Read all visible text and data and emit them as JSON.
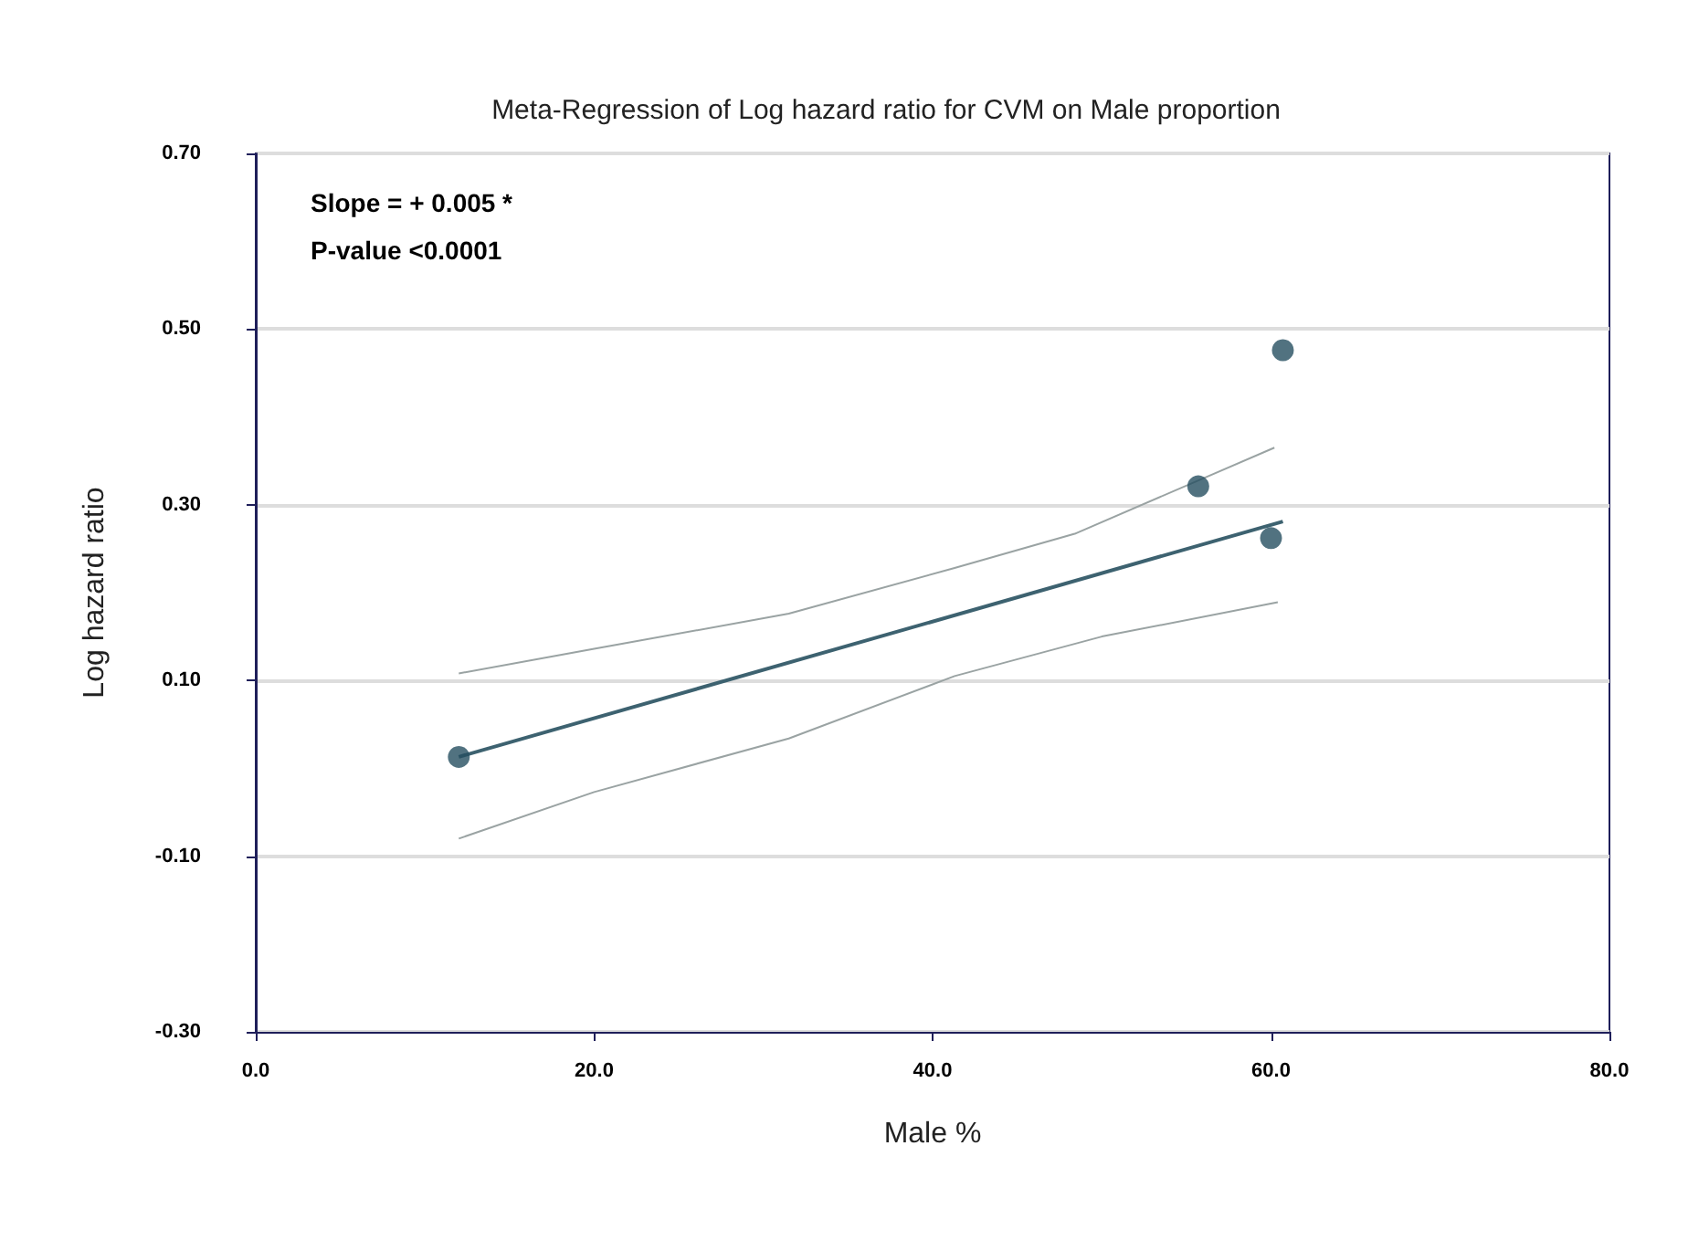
{
  "chart_data": {
    "type": "scatter",
    "title": "Meta-Regression of Log hazard ratio for CVM on Male proportion",
    "xlabel": "Male %",
    "ylabel": "Log hazard ratio",
    "annotations": [
      "Slope = + 0.005 *",
      "P-value <0.0001"
    ],
    "xlim": [
      0,
      80
    ],
    "xticks": [
      {
        "value": 0,
        "label": "0.0"
      },
      {
        "value": 20,
        "label": "20.0"
      },
      {
        "value": 40,
        "label": "40.0"
      },
      {
        "value": 60,
        "label": "60.0"
      },
      {
        "value": 80,
        "label": "80.0"
      }
    ],
    "ylim": [
      -0.3,
      0.7
    ],
    "yticks": [
      {
        "value": -0.3,
        "label": "-0.30"
      },
      {
        "value": -0.1,
        "label": "-0.10"
      },
      {
        "value": 0.1,
        "label": "0.10"
      },
      {
        "value": 0.3,
        "label": "0.30"
      },
      {
        "value": 0.5,
        "label": "0.50"
      },
      {
        "value": 0.7,
        "label": "0.70"
      }
    ],
    "grid": "y",
    "series": [
      {
        "type": "line",
        "marker": "none",
        "color": "#9aa3a3",
        "x": [
          12,
          20,
          31.5,
          41.3,
          48.4,
          60.2
        ],
        "values": [
          0.108,
          0.136,
          0.176,
          0.228,
          0.267,
          0.365
        ]
      },
      {
        "type": "line",
        "marker": "none",
        "color": "#9aa3a3",
        "x": [
          12,
          20,
          31.5,
          41.3,
          50,
          60.4
        ],
        "values": [
          -0.08,
          -0.027,
          0.034,
          0.105,
          0.15,
          0.189
        ]
      },
      {
        "type": "line",
        "marker": "none",
        "color": "#3d6270",
        "x": [
          12,
          60.7
        ],
        "values": [
          0.013,
          0.281
        ]
      },
      {
        "marker": "circle",
        "color": "#264f60",
        "x": [
          12,
          55.7,
          60,
          60.7
        ],
        "values": [
          0.013,
          0.321,
          0.262,
          0.476
        ]
      }
    ]
  }
}
